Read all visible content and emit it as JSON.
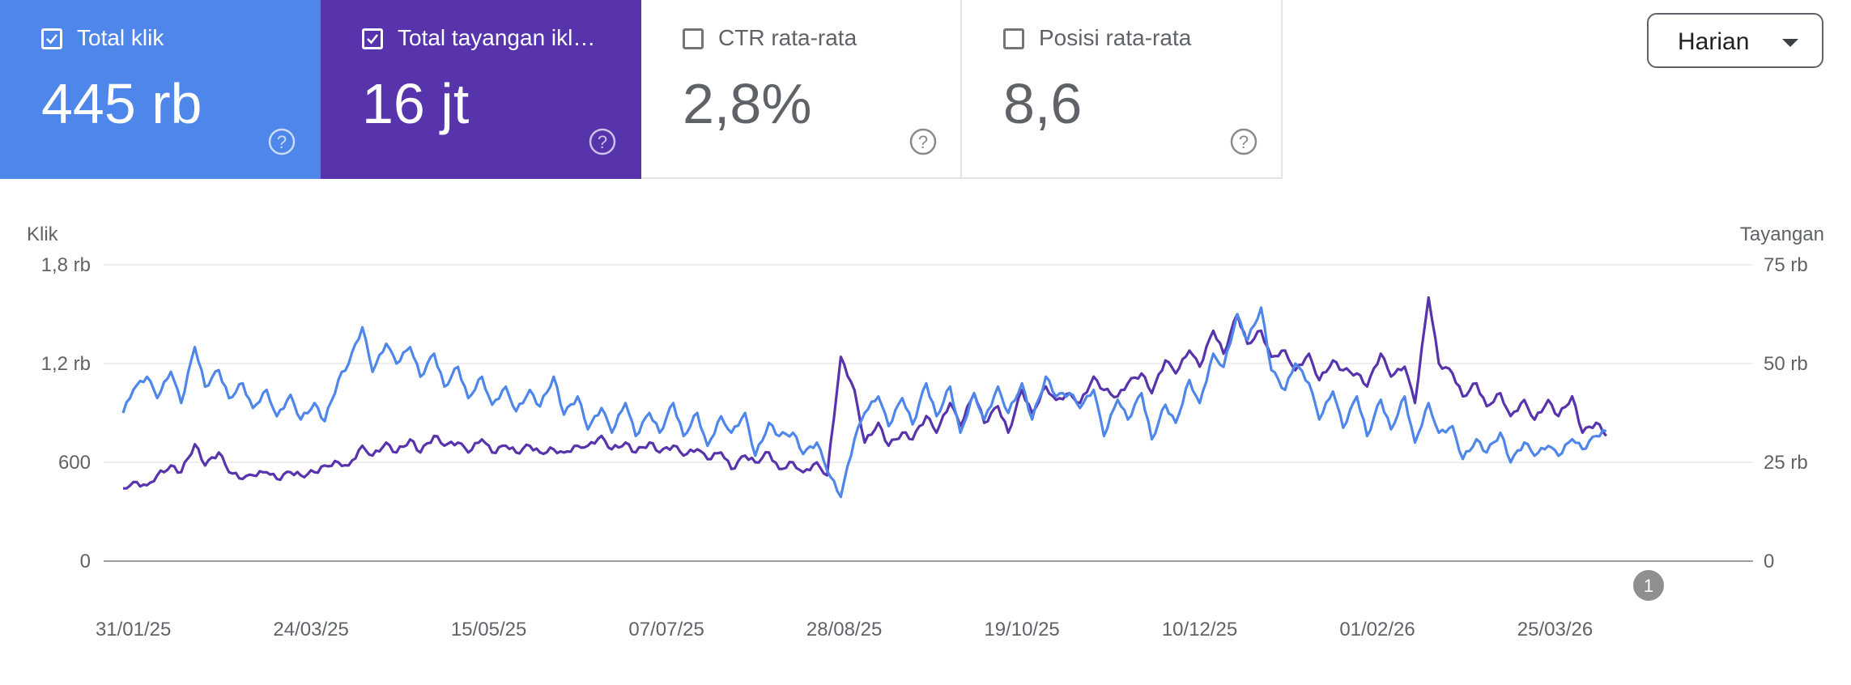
{
  "metric_cards": [
    {
      "label": "Total klik",
      "value": "445 rb",
      "checked": true,
      "color": "#4f86e9"
    },
    {
      "label": "Total tayangan ikl…",
      "value": "16 jt",
      "checked": true,
      "color": "#5733ac"
    },
    {
      "label": "CTR rata-rata",
      "value": "2,8%",
      "checked": false,
      "color": "#ffffff"
    },
    {
      "label": "Posisi rata-rata",
      "value": "8,6",
      "checked": false,
      "color": "#ffffff"
    }
  ],
  "granularity": {
    "selected": "Harian"
  },
  "annotation_marker": "1",
  "chart_data": {
    "type": "line",
    "start_date": "2025-01-28",
    "end_date": "2026-05-14",
    "y_left": {
      "label": "Klik",
      "ticks": [
        "0",
        "600",
        "1,2 rb",
        "1,8 rb"
      ],
      "range": [
        0,
        1800
      ]
    },
    "y_right": {
      "label": "Tayangan",
      "ticks": [
        "0",
        "25 rb",
        "50 rb",
        "75 rb"
      ],
      "range": [
        0,
        75000
      ]
    },
    "x_ticks": [
      "31/01/25",
      "24/03/25",
      "15/05/25",
      "07/07/25",
      "28/08/25",
      "19/10/25",
      "10/12/25",
      "01/02/26",
      "25/03/26"
    ],
    "grid": true,
    "series": [
      {
        "name": "Total klik",
        "axis": "left",
        "color": "#4f86e9",
        "knots": [
          [
            0,
            900
          ],
          [
            3,
            1040
          ],
          [
            7,
            1120
          ],
          [
            10,
            990
          ],
          [
            14,
            1150
          ],
          [
            17,
            960
          ],
          [
            21,
            1300
          ],
          [
            24,
            1060
          ],
          [
            28,
            1160
          ],
          [
            31,
            990
          ],
          [
            35,
            1080
          ],
          [
            38,
            930
          ],
          [
            42,
            1040
          ],
          [
            45,
            880
          ],
          [
            49,
            1010
          ],
          [
            52,
            860
          ],
          [
            56,
            960
          ],
          [
            59,
            850
          ],
          [
            63,
            1100
          ],
          [
            66,
            1200
          ],
          [
            70,
            1420
          ],
          [
            73,
            1150
          ],
          [
            77,
            1320
          ],
          [
            80,
            1200
          ],
          [
            84,
            1300
          ],
          [
            87,
            1120
          ],
          [
            91,
            1260
          ],
          [
            94,
            1060
          ],
          [
            98,
            1180
          ],
          [
            101,
            990
          ],
          [
            105,
            1120
          ],
          [
            108,
            950
          ],
          [
            112,
            1060
          ],
          [
            115,
            910
          ],
          [
            119,
            1040
          ],
          [
            122,
            940
          ],
          [
            126,
            1120
          ],
          [
            129,
            890
          ],
          [
            133,
            1000
          ],
          [
            136,
            800
          ],
          [
            140,
            930
          ],
          [
            143,
            780
          ],
          [
            147,
            960
          ],
          [
            150,
            760
          ],
          [
            154,
            900
          ],
          [
            157,
            780
          ],
          [
            161,
            960
          ],
          [
            164,
            760
          ],
          [
            168,
            900
          ],
          [
            171,
            700
          ],
          [
            175,
            880
          ],
          [
            178,
            780
          ],
          [
            182,
            900
          ],
          [
            185,
            640
          ],
          [
            189,
            840
          ],
          [
            192,
            760
          ],
          [
            196,
            780
          ],
          [
            199,
            650
          ],
          [
            203,
            720
          ],
          [
            206,
            550
          ],
          [
            210,
            390
          ],
          [
            214,
            740
          ],
          [
            217,
            900
          ],
          [
            221,
            1000
          ],
          [
            224,
            820
          ],
          [
            228,
            990
          ],
          [
            231,
            830
          ],
          [
            235,
            1080
          ],
          [
            238,
            880
          ],
          [
            242,
            1060
          ],
          [
            245,
            780
          ],
          [
            249,
            1020
          ],
          [
            252,
            860
          ],
          [
            256,
            1060
          ],
          [
            259,
            900
          ],
          [
            263,
            1080
          ],
          [
            266,
            860
          ],
          [
            270,
            1120
          ],
          [
            273,
            1000
          ],
          [
            277,
            1020
          ],
          [
            280,
            930
          ],
          [
            284,
            1040
          ],
          [
            287,
            760
          ],
          [
            291,
            980
          ],
          [
            294,
            860
          ],
          [
            298,
            1020
          ],
          [
            301,
            740
          ],
          [
            305,
            950
          ],
          [
            308,
            840
          ],
          [
            312,
            1100
          ],
          [
            315,
            960
          ],
          [
            319,
            1260
          ],
          [
            322,
            1180
          ],
          [
            326,
            1500
          ],
          [
            329,
            1340
          ],
          [
            333,
            1540
          ],
          [
            336,
            1160
          ],
          [
            340,
            1040
          ],
          [
            343,
            1200
          ],
          [
            347,
            1080
          ],
          [
            350,
            860
          ],
          [
            354,
            1030
          ],
          [
            357,
            810
          ],
          [
            361,
            1000
          ],
          [
            364,
            760
          ],
          [
            368,
            980
          ],
          [
            371,
            800
          ],
          [
            375,
            1000
          ],
          [
            378,
            720
          ],
          [
            382,
            960
          ],
          [
            385,
            780
          ],
          [
            389,
            820
          ],
          [
            392,
            620
          ],
          [
            396,
            740
          ],
          [
            399,
            660
          ],
          [
            403,
            780
          ],
          [
            406,
            600
          ],
          [
            410,
            720
          ],
          [
            413,
            640
          ],
          [
            417,
            700
          ],
          [
            420,
            640
          ],
          [
            424,
            740
          ],
          [
            427,
            680
          ],
          [
            431,
            760
          ],
          [
            434,
            790
          ]
        ]
      },
      {
        "name": "Total tayangan iklan",
        "axis": "right",
        "color": "#5733ac",
        "knots": [
          [
            0,
            18400
          ],
          [
            3,
            20000
          ],
          [
            7,
            19200
          ],
          [
            10,
            21700
          ],
          [
            14,
            24200
          ],
          [
            17,
            22500
          ],
          [
            21,
            29600
          ],
          [
            24,
            24200
          ],
          [
            28,
            27500
          ],
          [
            31,
            22500
          ],
          [
            35,
            20800
          ],
          [
            38,
            21700
          ],
          [
            42,
            22500
          ],
          [
            45,
            20800
          ],
          [
            49,
            22500
          ],
          [
            52,
            21700
          ],
          [
            56,
            22500
          ],
          [
            59,
            24200
          ],
          [
            63,
            25000
          ],
          [
            66,
            24200
          ],
          [
            70,
            29200
          ],
          [
            73,
            26700
          ],
          [
            77,
            30000
          ],
          [
            80,
            27500
          ],
          [
            84,
            30800
          ],
          [
            87,
            27500
          ],
          [
            91,
            31700
          ],
          [
            94,
            29200
          ],
          [
            98,
            30000
          ],
          [
            101,
            27500
          ],
          [
            105,
            30800
          ],
          [
            108,
            27500
          ],
          [
            112,
            29200
          ],
          [
            115,
            27500
          ],
          [
            119,
            29200
          ],
          [
            122,
            27500
          ],
          [
            126,
            28300
          ],
          [
            129,
            27500
          ],
          [
            133,
            29200
          ],
          [
            136,
            29200
          ],
          [
            140,
            31700
          ],
          [
            143,
            28300
          ],
          [
            147,
            30000
          ],
          [
            150,
            27500
          ],
          [
            154,
            30000
          ],
          [
            157,
            27500
          ],
          [
            161,
            29200
          ],
          [
            164,
            26700
          ],
          [
            168,
            28300
          ],
          [
            171,
            25800
          ],
          [
            175,
            27500
          ],
          [
            178,
            23300
          ],
          [
            182,
            26700
          ],
          [
            185,
            25000
          ],
          [
            189,
            27500
          ],
          [
            192,
            23300
          ],
          [
            196,
            25000
          ],
          [
            199,
            22500
          ],
          [
            203,
            25000
          ],
          [
            206,
            21700
          ],
          [
            210,
            51700
          ],
          [
            214,
            43300
          ],
          [
            217,
            30000
          ],
          [
            221,
            35000
          ],
          [
            224,
            29200
          ],
          [
            228,
            32500
          ],
          [
            231,
            30800
          ],
          [
            235,
            36700
          ],
          [
            238,
            32500
          ],
          [
            242,
            40000
          ],
          [
            245,
            34200
          ],
          [
            249,
            42500
          ],
          [
            252,
            35000
          ],
          [
            256,
            39200
          ],
          [
            259,
            32500
          ],
          [
            263,
            43300
          ],
          [
            266,
            37500
          ],
          [
            270,
            44200
          ],
          [
            273,
            40800
          ],
          [
            277,
            42500
          ],
          [
            280,
            40000
          ],
          [
            284,
            46700
          ],
          [
            287,
            43300
          ],
          [
            291,
            41700
          ],
          [
            294,
            45000
          ],
          [
            298,
            47500
          ],
          [
            301,
            42500
          ],
          [
            305,
            50800
          ],
          [
            308,
            47500
          ],
          [
            312,
            53300
          ],
          [
            315,
            49200
          ],
          [
            319,
            58300
          ],
          [
            322,
            52500
          ],
          [
            326,
            62500
          ],
          [
            329,
            55000
          ],
          [
            333,
            58300
          ],
          [
            336,
            51700
          ],
          [
            340,
            53300
          ],
          [
            343,
            48300
          ],
          [
            347,
            52500
          ],
          [
            350,
            45800
          ],
          [
            354,
            50800
          ],
          [
            357,
            48300
          ],
          [
            361,
            47500
          ],
          [
            364,
            44200
          ],
          [
            368,
            52500
          ],
          [
            371,
            46700
          ],
          [
            375,
            49200
          ],
          [
            378,
            40000
          ],
          [
            382,
            66700
          ],
          [
            385,
            50000
          ],
          [
            389,
            47500
          ],
          [
            392,
            41700
          ],
          [
            396,
            45000
          ],
          [
            399,
            39200
          ],
          [
            403,
            42500
          ],
          [
            406,
            36700
          ],
          [
            410,
            40800
          ],
          [
            413,
            35800
          ],
          [
            417,
            40800
          ],
          [
            420,
            36700
          ],
          [
            424,
            41700
          ],
          [
            427,
            32500
          ],
          [
            431,
            35000
          ],
          [
            434,
            31700
          ]
        ]
      }
    ]
  }
}
